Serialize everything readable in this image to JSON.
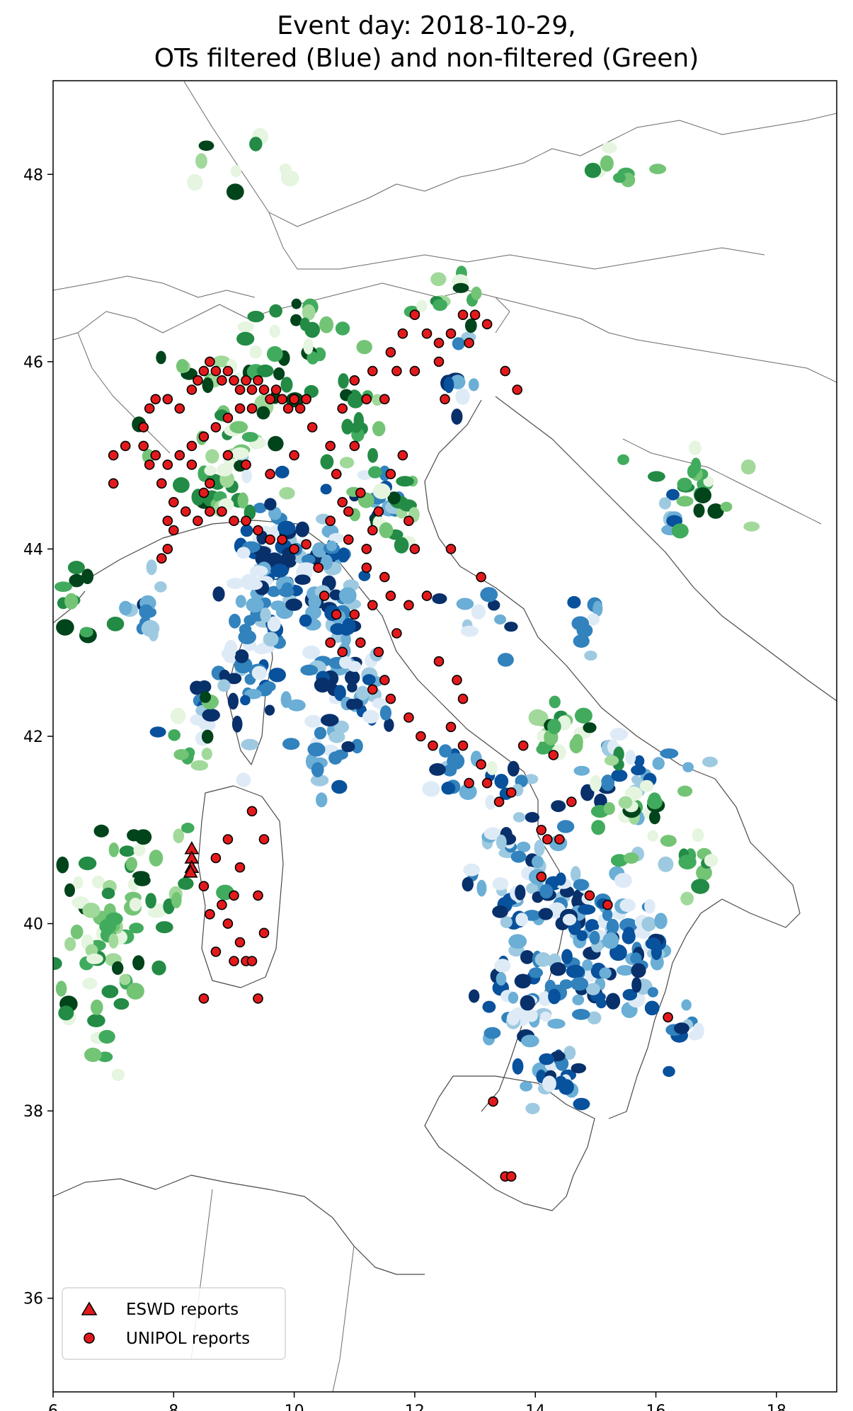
{
  "title": {
    "line1": "Event day: 2018-10-29,",
    "line2": "OTs filtered (Blue) and non-filtered (Green)"
  },
  "legend": {
    "placement": "lower-left",
    "eswd_label": "ESWD reports",
    "unipol_label": "UNIPOL reports"
  },
  "chart_data": {
    "type": "scatter",
    "xlim": [
      6,
      19
    ],
    "ylim": [
      35,
      49
    ],
    "x_ticks": [
      6,
      8,
      10,
      12,
      14,
      16,
      18
    ],
    "y_ticks": [
      36,
      38,
      40,
      42,
      44,
      46,
      48
    ],
    "colors": {
      "filtered_palette": [
        "#deebf7",
        "#9ecae1",
        "#6baed6",
        "#3182bd",
        "#08519c",
        "#08306b"
      ],
      "nonfiltered_palette": [
        "#e5f5e0",
        "#a1d99b",
        "#74c476",
        "#41ab5d",
        "#238b45",
        "#00441b"
      ],
      "report_fill": "#e31a1c",
      "report_edge": "#000000",
      "border": "#333333"
    },
    "filtered_clusters": [
      [
        9.8,
        44.0,
        0.9,
        0.7,
        60
      ],
      [
        9.6,
        43.4,
        0.6,
        0.7,
        40
      ],
      [
        10.6,
        43.6,
        0.5,
        0.8,
        30
      ],
      [
        10.8,
        42.8,
        0.5,
        0.6,
        30
      ],
      [
        9.2,
        42.6,
        0.5,
        0.6,
        25
      ],
      [
        10.6,
        41.8,
        0.5,
        0.6,
        20
      ],
      [
        11.2,
        42.4,
        0.4,
        0.4,
        15
      ],
      [
        14.8,
        39.8,
        1.0,
        0.8,
        70
      ],
      [
        15.7,
        39.7,
        0.6,
        0.6,
        40
      ],
      [
        13.8,
        40.5,
        0.7,
        0.6,
        40
      ],
      [
        13.8,
        39.2,
        0.6,
        0.7,
        40
      ],
      [
        14.4,
        38.4,
        0.4,
        0.5,
        20
      ],
      [
        15.4,
        41.6,
        0.8,
        0.4,
        25
      ],
      [
        13.5,
        41.2,
        0.5,
        0.4,
        15
      ],
      [
        11.6,
        44.6,
        0.4,
        0.4,
        12
      ],
      [
        14.8,
        43.3,
        0.4,
        0.3,
        8
      ],
      [
        12.5,
        41.7,
        0.5,
        0.3,
        10
      ],
      [
        7.6,
        43.4,
        0.5,
        0.4,
        12
      ],
      [
        16.2,
        44.3,
        0.4,
        0.3,
        6
      ],
      [
        13.0,
        43.3,
        0.5,
        0.4,
        10
      ],
      [
        16.4,
        38.8,
        0.4,
        0.4,
        10
      ],
      [
        8.4,
        42.3,
        0.4,
        0.4,
        12
      ],
      [
        12.6,
        45.8,
        0.4,
        0.4,
        10
      ]
    ],
    "nonfiltered_clusters": [
      [
        7.4,
        40.3,
        1.0,
        0.9,
        50
      ],
      [
        6.6,
        39.4,
        0.5,
        0.8,
        30
      ],
      [
        6.4,
        43.5,
        0.4,
        0.5,
        12
      ],
      [
        16.8,
        44.7,
        0.7,
        0.4,
        20
      ],
      [
        15.6,
        41.2,
        0.8,
        0.6,
        25
      ],
      [
        14.4,
        42.0,
        0.6,
        0.4,
        20
      ],
      [
        9.0,
        45.6,
        1.3,
        0.6,
        40
      ],
      [
        8.8,
        44.7,
        0.6,
        0.5,
        25
      ],
      [
        11.5,
        44.3,
        0.6,
        0.5,
        20
      ],
      [
        12.5,
        46.7,
        0.6,
        0.3,
        12
      ],
      [
        10.2,
        46.3,
        0.6,
        0.4,
        15
      ],
      [
        8.4,
        42.0,
        0.4,
        0.4,
        10
      ],
      [
        11.0,
        45.5,
        0.5,
        0.5,
        15
      ],
      [
        16.5,
        40.8,
        0.5,
        0.4,
        10
      ],
      [
        9.0,
        48.1,
        1.4,
        0.3,
        10
      ],
      [
        15.3,
        48.0,
        1.0,
        0.3,
        8
      ]
    ],
    "eswd_reports": [
      [
        8.3,
        40.8
      ],
      [
        8.3,
        40.7
      ],
      [
        8.3,
        40.6
      ],
      [
        8.28,
        40.55
      ]
    ],
    "unipol_reports": [
      [
        7.0,
        45.0
      ],
      [
        7.2,
        45.1
      ],
      [
        7.5,
        45.3
      ],
      [
        7.6,
        45.5
      ],
      [
        7.7,
        45.6
      ],
      [
        7.9,
        45.6
      ],
      [
        8.1,
        45.5
      ],
      [
        8.3,
        45.7
      ],
      [
        8.4,
        45.8
      ],
      [
        8.5,
        45.9
      ],
      [
        8.6,
        46.0
      ],
      [
        8.7,
        45.9
      ],
      [
        8.8,
        45.8
      ],
      [
        8.9,
        45.9
      ],
      [
        9.0,
        45.8
      ],
      [
        9.1,
        45.7
      ],
      [
        9.2,
        45.8
      ],
      [
        9.3,
        45.7
      ],
      [
        9.4,
        45.8
      ],
      [
        9.5,
        45.7
      ],
      [
        9.6,
        45.6
      ],
      [
        9.7,
        45.7
      ],
      [
        9.8,
        45.6
      ],
      [
        9.9,
        45.5
      ],
      [
        10.0,
        45.6
      ],
      [
        10.1,
        45.5
      ],
      [
        10.2,
        45.6
      ],
      [
        9.3,
        45.5
      ],
      [
        9.1,
        45.5
      ],
      [
        8.9,
        45.4
      ],
      [
        8.7,
        45.3
      ],
      [
        8.5,
        45.2
      ],
      [
        8.3,
        45.1
      ],
      [
        8.1,
        45.0
      ],
      [
        7.9,
        44.9
      ],
      [
        7.7,
        45.0
      ],
      [
        7.5,
        45.1
      ],
      [
        7.6,
        44.9
      ],
      [
        7.8,
        44.7
      ],
      [
        8.0,
        44.5
      ],
      [
        8.2,
        44.4
      ],
      [
        8.4,
        44.3
      ],
      [
        8.6,
        44.4
      ],
      [
        8.8,
        44.4
      ],
      [
        9.0,
        44.3
      ],
      [
        9.2,
        44.3
      ],
      [
        9.4,
        44.2
      ],
      [
        9.6,
        44.1
      ],
      [
        9.8,
        44.1
      ],
      [
        10.0,
        44.0
      ],
      [
        10.2,
        44.05
      ],
      [
        8.0,
        44.2
      ],
      [
        7.9,
        44.0
      ],
      [
        7.8,
        43.9
      ],
      [
        8.5,
        44.6
      ],
      [
        8.6,
        44.7
      ],
      [
        8.3,
        44.9
      ],
      [
        8.9,
        45.0
      ],
      [
        9.2,
        44.9
      ],
      [
        9.6,
        44.8
      ],
      [
        10.0,
        45.0
      ],
      [
        10.3,
        45.3
      ],
      [
        10.6,
        45.1
      ],
      [
        10.8,
        45.5
      ],
      [
        11.0,
        45.8
      ],
      [
        11.3,
        45.9
      ],
      [
        11.6,
        46.1
      ],
      [
        11.8,
        46.3
      ],
      [
        12.0,
        46.5
      ],
      [
        12.2,
        46.3
      ],
      [
        12.4,
        46.2
      ],
      [
        12.6,
        46.3
      ],
      [
        12.8,
        46.5
      ],
      [
        13.0,
        46.5
      ],
      [
        13.2,
        46.4
      ],
      [
        12.4,
        46.0
      ],
      [
        12.0,
        45.9
      ],
      [
        11.7,
        45.9
      ],
      [
        11.5,
        45.6
      ],
      [
        11.2,
        45.6
      ],
      [
        11.0,
        45.1
      ],
      [
        10.7,
        44.8
      ],
      [
        10.8,
        44.5
      ],
      [
        11.1,
        44.6
      ],
      [
        11.4,
        44.4
      ],
      [
        11.6,
        44.8
      ],
      [
        11.8,
        45.0
      ],
      [
        11.3,
        44.2
      ],
      [
        11.2,
        44.0
      ],
      [
        10.9,
        44.1
      ],
      [
        11.2,
        43.8
      ],
      [
        11.5,
        43.7
      ],
      [
        11.6,
        43.5
      ],
      [
        11.3,
        43.4
      ],
      [
        11.0,
        43.3
      ],
      [
        10.7,
        43.3
      ],
      [
        10.5,
        43.5
      ],
      [
        10.4,
        43.8
      ],
      [
        10.6,
        43.0
      ],
      [
        10.8,
        42.9
      ],
      [
        11.1,
        43.0
      ],
      [
        11.4,
        42.9
      ],
      [
        11.7,
        43.1
      ],
      [
        11.9,
        43.4
      ],
      [
        11.5,
        42.6
      ],
      [
        11.3,
        42.5
      ],
      [
        11.6,
        42.4
      ],
      [
        11.9,
        42.2
      ],
      [
        12.1,
        42.0
      ],
      [
        12.3,
        41.9
      ],
      [
        12.6,
        42.1
      ],
      [
        12.8,
        41.9
      ],
      [
        12.8,
        42.4
      ],
      [
        12.7,
        42.6
      ],
      [
        12.4,
        42.8
      ],
      [
        12.2,
        43.5
      ],
      [
        11.9,
        44.3
      ],
      [
        12.0,
        44.0
      ],
      [
        13.1,
        43.7
      ],
      [
        12.6,
        44.0
      ],
      [
        12.9,
        41.5
      ],
      [
        13.2,
        41.5
      ],
      [
        13.4,
        41.3
      ],
      [
        13.6,
        41.4
      ],
      [
        13.1,
        41.7
      ],
      [
        13.8,
        41.9
      ],
      [
        14.3,
        41.8
      ],
      [
        14.1,
        41.0
      ],
      [
        14.2,
        40.9
      ],
      [
        14.4,
        40.9
      ],
      [
        14.6,
        41.3
      ],
      [
        14.1,
        40.5
      ],
      [
        14.9,
        40.3
      ],
      [
        15.2,
        40.2
      ],
      [
        16.2,
        39.0
      ],
      [
        13.3,
        38.1
      ],
      [
        13.5,
        37.3
      ],
      [
        13.6,
        37.3
      ],
      [
        12.5,
        45.6
      ],
      [
        12.9,
        46.2
      ],
      [
        13.5,
        45.9
      ],
      [
        13.7,
        45.7
      ],
      [
        10.6,
        44.3
      ],
      [
        10.9,
        44.4
      ],
      [
        9.5,
        40.9
      ],
      [
        9.1,
        40.6
      ],
      [
        8.9,
        40.9
      ],
      [
        8.7,
        40.7
      ],
      [
        9.3,
        41.2
      ],
      [
        8.8,
        40.2
      ],
      [
        9.0,
        40.3
      ],
      [
        9.4,
        40.3
      ],
      [
        8.7,
        39.7
      ],
      [
        9.1,
        39.8
      ],
      [
        9.2,
        39.6
      ],
      [
        9.0,
        39.6
      ],
      [
        9.3,
        39.6
      ],
      [
        9.5,
        39.9
      ],
      [
        8.5,
        39.2
      ],
      [
        9.4,
        39.2
      ],
      [
        8.6,
        40.1
      ],
      [
        8.5,
        40.4
      ],
      [
        8.9,
        40.0
      ],
      [
        7.9,
        44.3
      ],
      [
        7.0,
        44.7
      ]
    ]
  }
}
